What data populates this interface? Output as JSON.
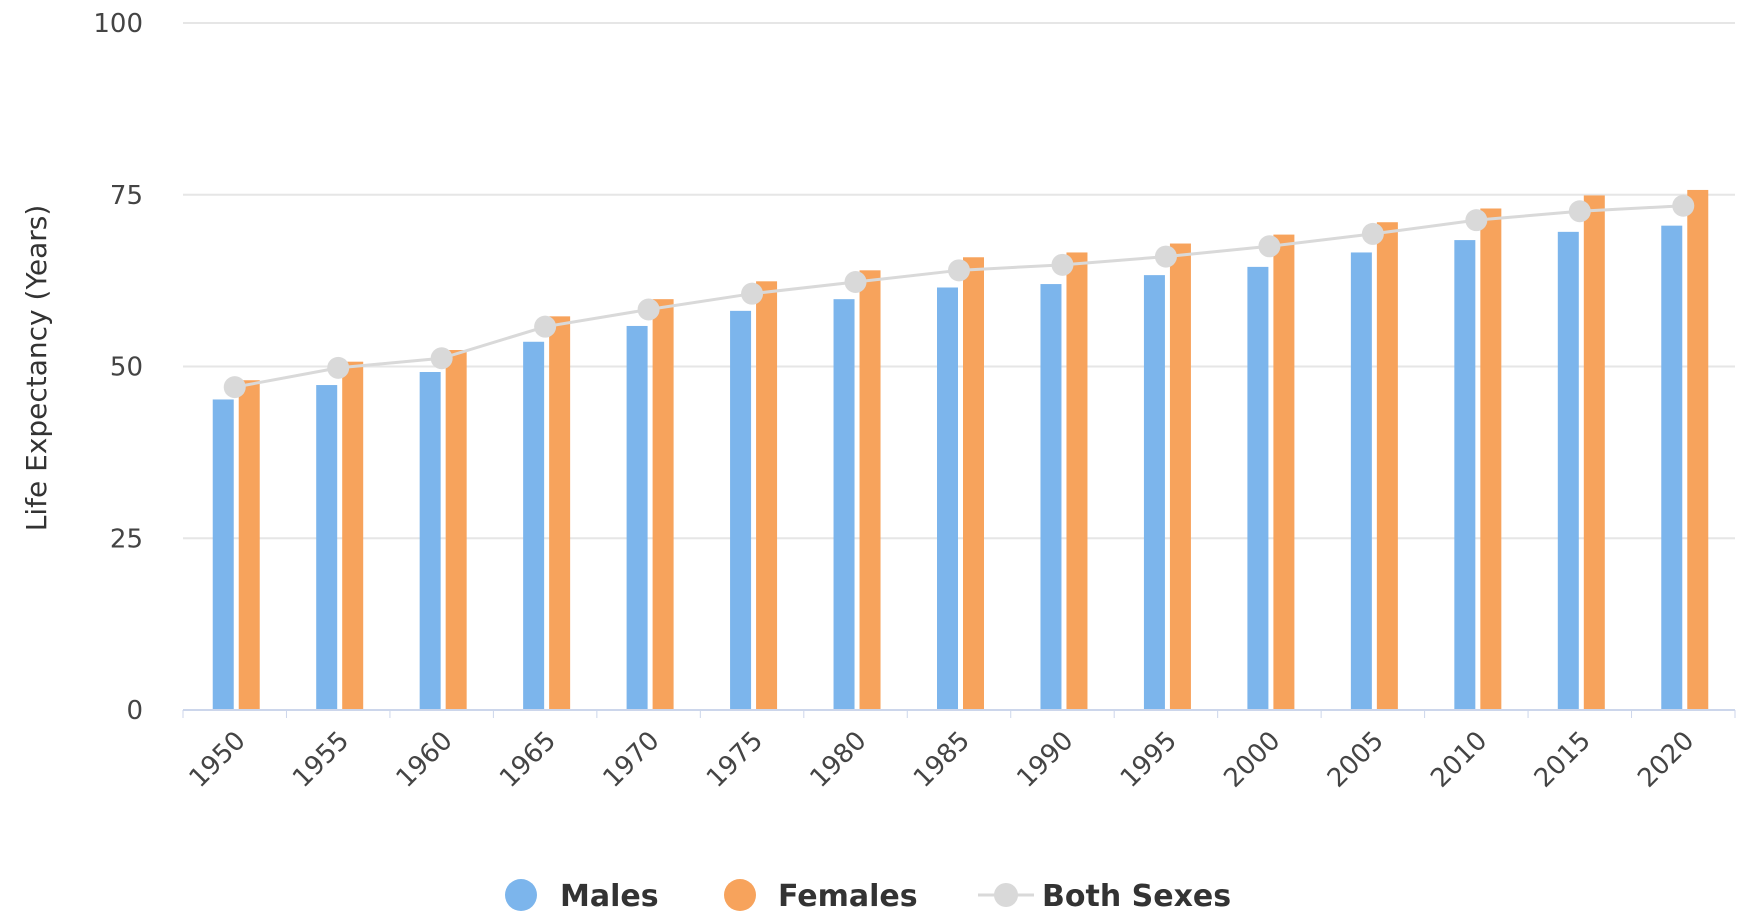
{
  "chart_data": {
    "type": "bar",
    "categories": [
      "1950",
      "1955",
      "1960",
      "1965",
      "1970",
      "1975",
      "1980",
      "1985",
      "1990",
      "1995",
      "2000",
      "2005",
      "2010",
      "2015",
      "2020"
    ],
    "series": [
      {
        "name": "Males",
        "type": "bar",
        "color": "#7cb5ec",
        "values": [
          45.2,
          47.3,
          49.2,
          53.6,
          55.9,
          58.1,
          59.8,
          61.5,
          62.0,
          63.3,
          64.5,
          66.6,
          68.4,
          69.6,
          70.5
        ]
      },
      {
        "name": "Females",
        "type": "bar",
        "color": "#f7a35c",
        "values": [
          48.0,
          50.7,
          52.4,
          57.3,
          59.8,
          62.4,
          64.0,
          65.9,
          66.6,
          67.9,
          69.2,
          71.0,
          73.0,
          74.9,
          75.7
        ]
      },
      {
        "name": "Both Sexes",
        "type": "line",
        "color": "#d9d9d9",
        "values": [
          47.0,
          49.8,
          51.2,
          55.8,
          58.3,
          60.6,
          62.3,
          64.0,
          64.8,
          66.0,
          67.5,
          69.3,
          71.3,
          72.6,
          73.4
        ]
      }
    ],
    "ylabel": "Life Expectancy (Years)",
    "ylim": [
      0,
      100
    ],
    "yticks": [
      "0",
      "25",
      "50",
      "75",
      "100"
    ],
    "grid": true,
    "legend_position": "bottom-center"
  }
}
